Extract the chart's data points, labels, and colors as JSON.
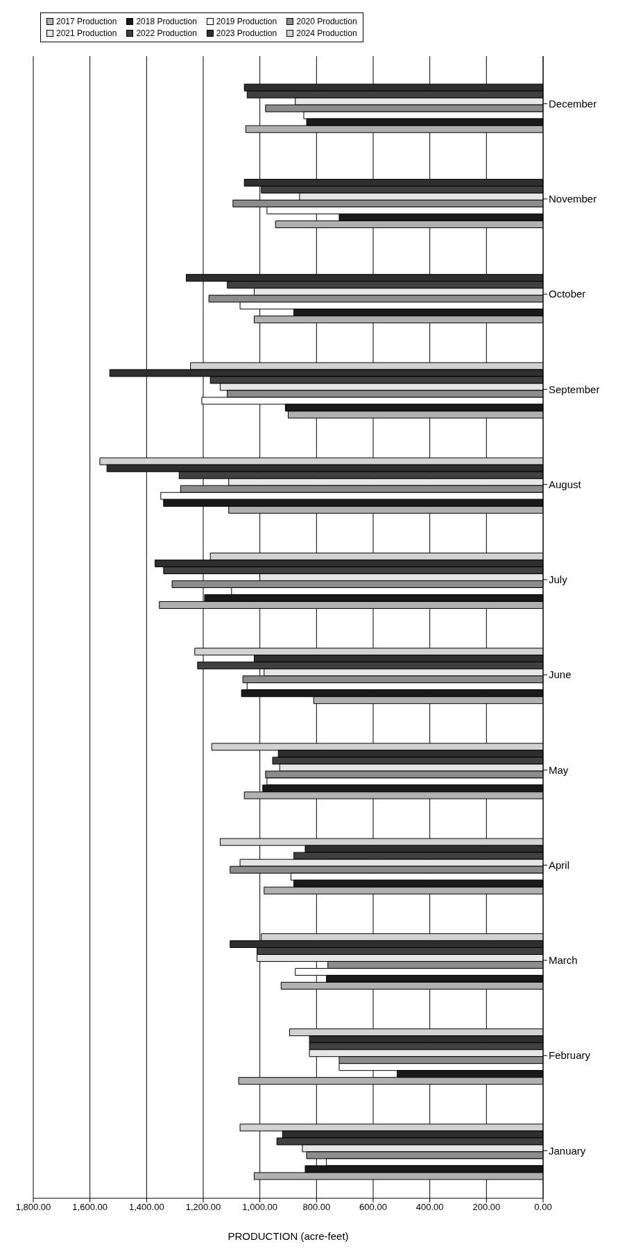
{
  "chart_data": {
    "type": "bar",
    "orientation": "horizontal",
    "xlabel": "PRODUCTION (acre-feet)",
    "categories": [
      "December",
      "November",
      "October",
      "September",
      "August",
      "July",
      "June",
      "May",
      "April",
      "March",
      "February",
      "January"
    ],
    "series": [
      {
        "name": "2017 Production",
        "color": "#b0b0b0",
        "values": [
          1050,
          945,
          1020,
          900,
          1110,
          1355,
          810,
          1055,
          985,
          925,
          1075,
          1020
        ]
      },
      {
        "name": "2018 Production",
        "color": "#1a1a1a",
        "values": [
          835,
          720,
          880,
          910,
          1340,
          1195,
          1065,
          990,
          880,
          765,
          515,
          840
        ]
      },
      {
        "name": "2019 Production",
        "color": "#ffffff",
        "values": [
          845,
          975,
          1070,
          1205,
          1350,
          1100,
          1045,
          975,
          890,
          875,
          720,
          765
        ]
      },
      {
        "name": "2020 Production",
        "color": "#8c8c8c",
        "values": [
          980,
          1095,
          1180,
          1115,
          1280,
          1310,
          1060,
          980,
          1105,
          760,
          720,
          835
        ]
      },
      {
        "name": "2021 Production",
        "color": "#e6e6e6",
        "values": [
          875,
          860,
          1020,
          1140,
          1110,
          1000,
          985,
          930,
          1070,
          1010,
          825,
          850
        ]
      },
      {
        "name": "2022 Production",
        "color": "#404040",
        "values": [
          1045,
          995,
          1115,
          1175,
          1285,
          1340,
          1220,
          955,
          880,
          1010,
          825,
          940
        ]
      },
      {
        "name": "2023 Production",
        "color": "#2e2e2e",
        "values": [
          1055,
          1055,
          1260,
          1530,
          1540,
          1370,
          1020,
          935,
          840,
          1105,
          825,
          920
        ]
      },
      {
        "name": "2024 Production",
        "color": "#d2d2d2",
        "values": [
          null,
          null,
          null,
          1245,
          1565,
          1175,
          1230,
          1170,
          1140,
          995,
          895,
          1070
        ]
      }
    ],
    "xlim": [
      1800,
      0
    ],
    "xticks": [
      {
        "value": 1800,
        "label": "1,800.00"
      },
      {
        "value": 1600,
        "label": "1,600.00"
      },
      {
        "value": 1400,
        "label": "1,400.00"
      },
      {
        "value": 1200,
        "label": "1,200.00"
      },
      {
        "value": 1000,
        "label": "1,000.00"
      },
      {
        "value": 800,
        "label": "800.00"
      },
      {
        "value": 600,
        "label": "600.00"
      },
      {
        "value": 400,
        "label": "400.00"
      },
      {
        "value": 200,
        "label": "200.00"
      },
      {
        "value": 0,
        "label": "0.00"
      }
    ],
    "grid": "x",
    "legend": "top left"
  }
}
